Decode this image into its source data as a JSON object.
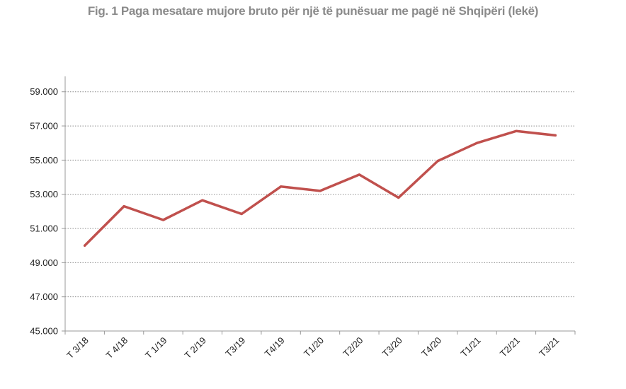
{
  "chart_data": {
    "type": "line",
    "title": "Fig. 1 Paga mesatare mujore bruto për një të punësuar me pagë në  Shqipëri (lekë)",
    "categories": [
      "T 3/18",
      "T 4/18",
      "T 1/19",
      "T 2/19",
      "T3/19",
      "T4/19",
      "T1/20",
      "T2/20",
      "T3/20",
      "T4/20",
      "T1/21",
      "T2/21",
      "T3/21"
    ],
    "series": [
      {
        "values": [
          50000,
          52300,
          51500,
          52650,
          51850,
          53450,
          53200,
          54150,
          52800,
          54950,
          56000,
          56700,
          56450
        ]
      }
    ],
    "ylim": [
      45000,
      59000
    ],
    "yticks": [
      45000,
      47000,
      49000,
      51000,
      53000,
      55000,
      57000,
      59000
    ],
    "ytick_labels": [
      "45.000",
      "47.000",
      "49.000",
      "51.000",
      "53.000",
      "55.000",
      "57.000",
      "59.000"
    ],
    "grid": "horizontal dotted",
    "line_color": "#c0504d",
    "xlabel": "",
    "ylabel": ""
  }
}
